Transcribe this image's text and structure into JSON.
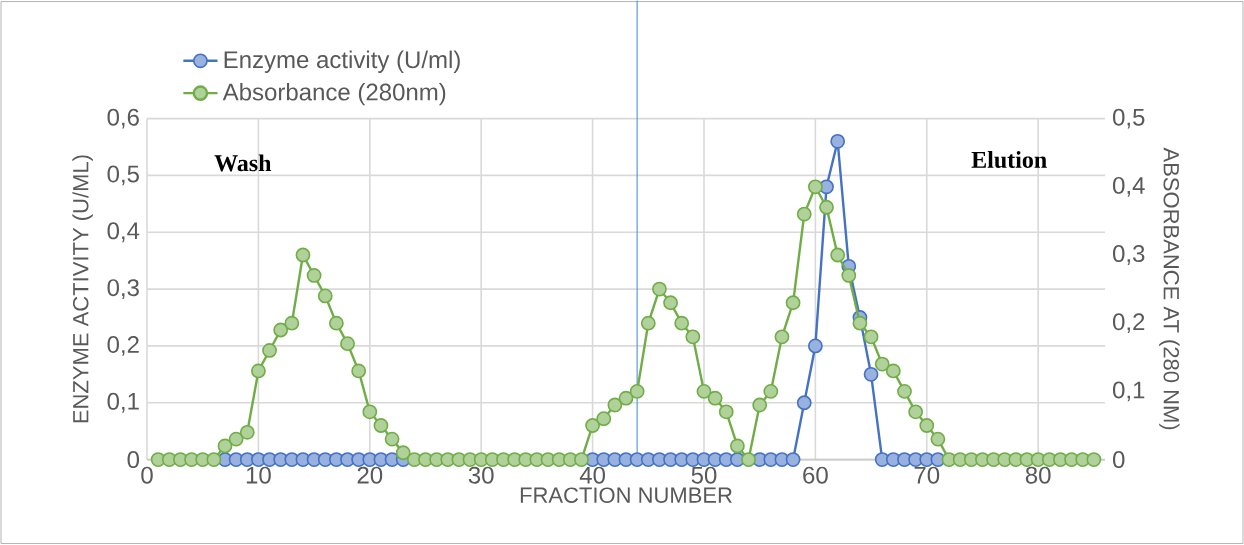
{
  "chart_data": {
    "type": "line",
    "xlabel": "FRACTION NUMBER",
    "ylabel": "ENZYME ACTIVITY (U/ML)",
    "y2label": "ABSORBANCE AT (280 NM)",
    "x": [
      1,
      2,
      3,
      4,
      5,
      6,
      7,
      8,
      9,
      10,
      11,
      12,
      13,
      14,
      15,
      16,
      17,
      18,
      19,
      20,
      21,
      22,
      23,
      24,
      25,
      26,
      27,
      28,
      29,
      30,
      31,
      32,
      33,
      34,
      35,
      36,
      37,
      38,
      39,
      40,
      41,
      42,
      43,
      44,
      45,
      46,
      47,
      48,
      49,
      50,
      51,
      52,
      53,
      54,
      55,
      56,
      57,
      58,
      59,
      60,
      61,
      62,
      63,
      64,
      65,
      66,
      67,
      68,
      69,
      70,
      71,
      72,
      73,
      74,
      75,
      76,
      77,
      78,
      79,
      80,
      81,
      82,
      83,
      84,
      85
    ],
    "series": [
      {
        "name": "Enzyme activity (U/ml)",
        "color": "#4472c4",
        "values": [
          null,
          null,
          null,
          null,
          null,
          null,
          0,
          0,
          0,
          0,
          0,
          0,
          0,
          0,
          0,
          0,
          0,
          0,
          0,
          0,
          0,
          0,
          0,
          null,
          null,
          null,
          null,
          null,
          null,
          null,
          null,
          null,
          null,
          null,
          null,
          null,
          null,
          null,
          null,
          0,
          0,
          0,
          0,
          0,
          0,
          0,
          0,
          0,
          0,
          0,
          0,
          0,
          0,
          null,
          0,
          0,
          0,
          0,
          0.1,
          0.2,
          0.48,
          0.56,
          0.34,
          0.25,
          0.15,
          0,
          0,
          0,
          0,
          0,
          0,
          null,
          null,
          null,
          null,
          null,
          null,
          null,
          null,
          null,
          null,
          null,
          null,
          null,
          null
        ]
      },
      {
        "name": "Absorbance (280nm)",
        "color": "#70ad47",
        "axis": "y2",
        "values": [
          0,
          0,
          0,
          0,
          0,
          0,
          0.02,
          0.03,
          0.04,
          0.13,
          0.16,
          0.19,
          0.2,
          0.3,
          0.27,
          0.24,
          0.2,
          0.17,
          0.13,
          0.07,
          0.05,
          0.03,
          0.01,
          0,
          0,
          0,
          0,
          0,
          0,
          0,
          0,
          0,
          0,
          0,
          0,
          0,
          0,
          0,
          0,
          0.05,
          0.06,
          0.08,
          0.09,
          0.1,
          0.2,
          0.25,
          0.23,
          0.2,
          0.18,
          0.1,
          0.09,
          0.07,
          0.02,
          0,
          0.08,
          0.1,
          0.18,
          0.23,
          0.36,
          0.4,
          0.37,
          0.3,
          0.27,
          0.2,
          0.18,
          0.14,
          0.13,
          0.1,
          0.07,
          0.05,
          0.03,
          0,
          0,
          0,
          0,
          0,
          0,
          0,
          0,
          0,
          0,
          0,
          0,
          0,
          0
        ]
      }
    ],
    "xlim": [
      0,
      86
    ],
    "xticks": [
      0,
      10,
      20,
      30,
      40,
      50,
      60,
      70,
      80
    ],
    "ylim": [
      0,
      0.6
    ],
    "yticks": [
      {
        "value": 0,
        "label": "0"
      },
      {
        "value": 0.1,
        "label": "0,1"
      },
      {
        "value": 0.2,
        "label": "0,2"
      },
      {
        "value": 0.3,
        "label": "0,3"
      },
      {
        "value": 0.4,
        "label": "0,4"
      },
      {
        "value": 0.5,
        "label": "0,5"
      },
      {
        "value": 0.6,
        "label": "0,6"
      }
    ],
    "y2lim": [
      0,
      0.5
    ],
    "y2ticks": [
      {
        "value": 0,
        "label": "0"
      },
      {
        "value": 0.1,
        "label": "0,1"
      },
      {
        "value": 0.2,
        "label": "0,2"
      },
      {
        "value": 0.3,
        "label": "0,3"
      },
      {
        "value": 0.4,
        "label": "0,4"
      },
      {
        "value": 0.5,
        "label": "0,5"
      }
    ],
    "ref_lines": [
      {
        "axis": "x",
        "value": 44,
        "color": "#5b9bd5"
      }
    ],
    "annotations": [
      "Wash",
      "Elution"
    ],
    "grid": true,
    "legend": "top left",
    "marker": "circle",
    "line_style": "solid"
  }
}
